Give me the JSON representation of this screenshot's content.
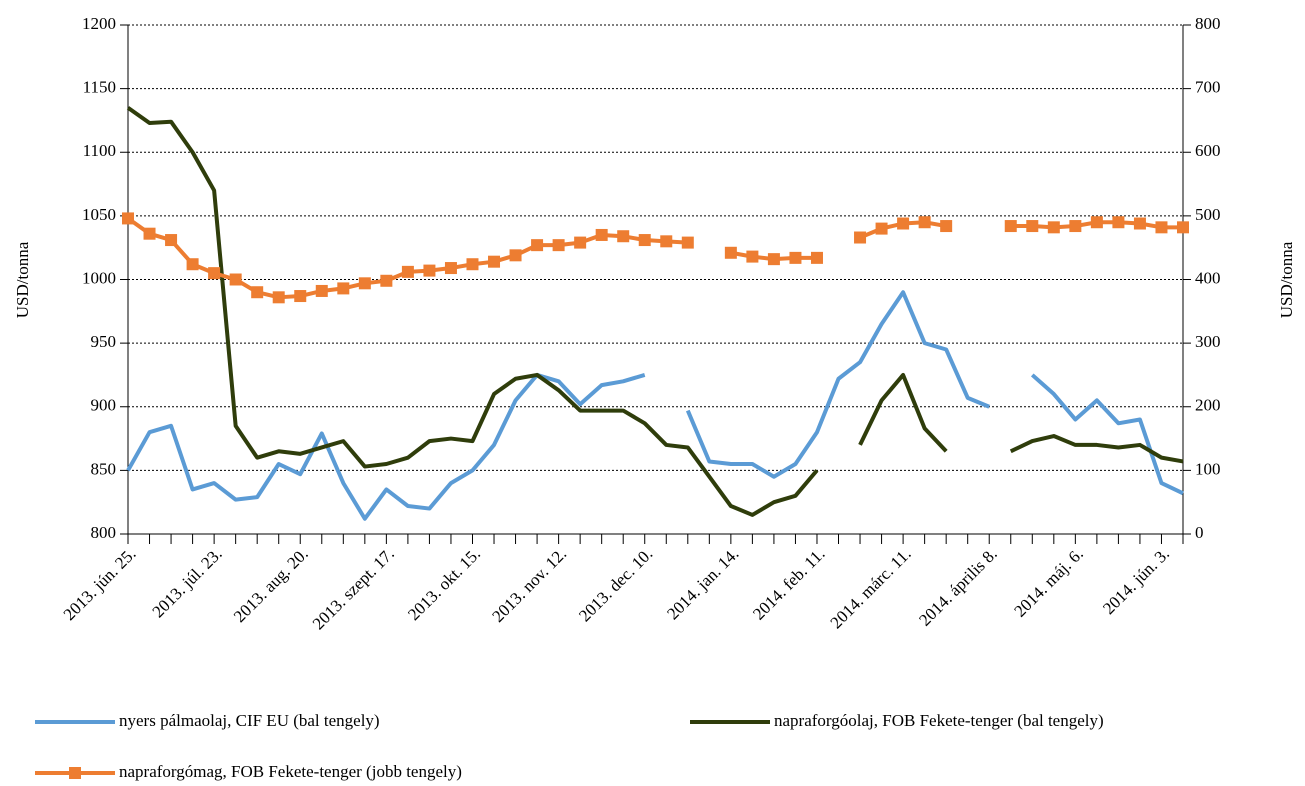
{
  "chart_data": {
    "type": "line",
    "y_label": "USD/tonna",
    "y2_label": "USD/tonna",
    "categories": [
      "2013. jún. 25.",
      null,
      null,
      null,
      "2013. júl. 23.",
      null,
      null,
      null,
      "2013. aug. 20.",
      null,
      null,
      null,
      "2013. szept. 17.",
      null,
      null,
      null,
      "2013. okt. 15.",
      null,
      null,
      null,
      "2013. nov. 12.",
      null,
      null,
      null,
      "2013. dec. 10.",
      null,
      null,
      null,
      "2014. jan. 14.",
      null,
      null,
      null,
      "2014. feb. 11.",
      null,
      null,
      null,
      "2014. márc. 11.",
      null,
      null,
      null,
      "2014. április 8.",
      null,
      null,
      null,
      "2014. máj. 6.",
      null,
      null,
      null,
      "2014. jún. 3.",
      null
    ],
    "ylim": [
      800,
      1200
    ],
    "yticks": [
      800,
      850,
      900,
      950,
      1000,
      1050,
      1100,
      1150,
      1200
    ],
    "y2lim": [
      0,
      800
    ],
    "y2ticks": [
      0,
      100,
      200,
      300,
      400,
      500,
      600,
      700,
      800
    ],
    "grid": true,
    "legend": "bottom",
    "series": [
      {
        "name": "nyers pálmaolaj, CIF EU (bal tengely)",
        "color": "#5b9bd5",
        "values": [
          850,
          880,
          885,
          835,
          840,
          827,
          829,
          855,
          847,
          879,
          840,
          812,
          835,
          822,
          820,
          840,
          850,
          870,
          905,
          925,
          920,
          902,
          917,
          920,
          925,
          null,
          897,
          857,
          855,
          855,
          845,
          855,
          880,
          922,
          935,
          965,
          990,
          950,
          945,
          907,
          900,
          null,
          925,
          910,
          890,
          905,
          887,
          890,
          840,
          832
        ]
      },
      {
        "name": "napraforgóolaj, FOB Fekete-tenger (bal tengely)",
        "color": "#2f3d0b",
        "values": [
          1135,
          1123,
          1124,
          1100,
          1070,
          885,
          860,
          865,
          863,
          868,
          873,
          853,
          855,
          860,
          873,
          875,
          873,
          910,
          922,
          925,
          913,
          897,
          897,
          897,
          887,
          870,
          868,
          845,
          822,
          815,
          825,
          830,
          850,
          null,
          870,
          905,
          925,
          883,
          865,
          null,
          null,
          865,
          873,
          877,
          870,
          870,
          868,
          870,
          860,
          857
        ]
      },
      {
        "name": "napraforgómag, FOB Fekete-tenger (jobb tengely)",
        "color": "#ed7d31",
        "axis": "y2",
        "marker": "square",
        "values": [
          496,
          472,
          462,
          424,
          410,
          400,
          380,
          372,
          374,
          382,
          386,
          394,
          398,
          412,
          414,
          418,
          424,
          428,
          438,
          454,
          454,
          458,
          470,
          468,
          462,
          460,
          458,
          null,
          442,
          436,
          432,
          434,
          434,
          null,
          466,
          480,
          488,
          490,
          484,
          null,
          null,
          484,
          484,
          482,
          484,
          490,
          490,
          488,
          482,
          482
        ]
      }
    ]
  }
}
